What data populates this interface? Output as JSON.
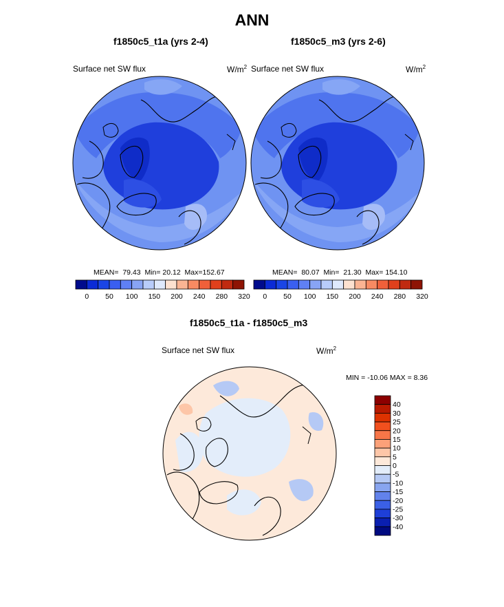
{
  "figure": {
    "season": "ANN"
  },
  "chart_data": [
    {
      "type": "heatmap",
      "projection": "north-polar-stereographic",
      "title": "f1850c5_t1a (yrs 2-4)",
      "variable": "Surface net SW flux",
      "units": "W/m",
      "units_exp": "2",
      "stats": {
        "mean_label": "MEAN=",
        "mean": "79.43",
        "min_label": "Min=",
        "min": "20.12",
        "max_label": "Max=",
        "max": "152.67"
      },
      "colorbar": {
        "tick_labels": [
          "0",
          "50",
          "100",
          "150",
          "200",
          "240",
          "280",
          "320"
        ],
        "colors": [
          "#000b8c",
          "#0b2bd6",
          "#1a45e6",
          "#3a5ff0",
          "#5f80f5",
          "#88a4f5",
          "#b8ccfa",
          "#dfe9fc",
          "#fde1d0",
          "#fbb493",
          "#f88a62",
          "#f0603a",
          "#e0401c",
          "#c02a10",
          "#8e1404"
        ]
      }
    },
    {
      "type": "heatmap",
      "projection": "north-polar-stereographic",
      "title": "f1850c5_m3 (yrs 2-6)",
      "variable": "Surface net SW flux",
      "units": "W/m",
      "units_exp": "2",
      "stats": {
        "mean_label": "MEAN=",
        "mean": "80.07",
        "min_label": "Min=",
        "min": "21.30",
        "max_label": "Max=",
        "max": "154.10"
      },
      "colorbar": {
        "tick_labels": [
          "0",
          "50",
          "100",
          "150",
          "200",
          "240",
          "280",
          "320"
        ],
        "colors": [
          "#000b8c",
          "#0b2bd6",
          "#1a45e6",
          "#3a5ff0",
          "#5f80f5",
          "#88a4f5",
          "#b8ccfa",
          "#dfe9fc",
          "#fde1d0",
          "#fbb493",
          "#f88a62",
          "#f0603a",
          "#e0401c",
          "#c02a10",
          "#8e1404"
        ]
      }
    },
    {
      "type": "heatmap",
      "projection": "north-polar-stereographic",
      "title": "f1850c5_t1a - f1850c5_m3",
      "variable": "Surface net SW flux",
      "units": "W/m",
      "units_exp": "2",
      "stats_text": "MIN = -10.06 MAX =   8.36",
      "colorbar": {
        "orientation": "vertical",
        "tick_labels": [
          "40",
          "30",
          "25",
          "20",
          "15",
          "10",
          "5",
          "0",
          "-5",
          "-10",
          "-15",
          "-20",
          "-25",
          "-30",
          "-40"
        ],
        "colors": [
          "#8c0000",
          "#b81a00",
          "#dd3200",
          "#f2501e",
          "#f87648",
          "#fba179",
          "#fdc6a8",
          "#fde9da",
          "#e3edfa",
          "#b5c9f5",
          "#88a5f0",
          "#6282eb",
          "#3b60e6",
          "#1e3fd8",
          "#0a1fb0",
          "#000a80"
        ]
      }
    }
  ]
}
